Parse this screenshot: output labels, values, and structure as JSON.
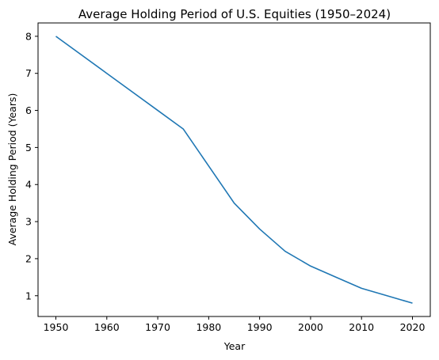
{
  "chart_data": {
    "type": "line",
    "title": "Average Holding Period of U.S. Equities (1950–2024)",
    "xlabel": "Year",
    "ylabel": "Average Holding Period (Years)",
    "x_ticks": [
      1950,
      1960,
      1970,
      1980,
      1990,
      2000,
      2010,
      2020
    ],
    "y_ticks": [
      1,
      2,
      3,
      4,
      5,
      6,
      7,
      8
    ],
    "xlim": [
      1946.5,
      2023.5
    ],
    "ylim": [
      0.44,
      8.36
    ],
    "grid": false,
    "line_color": "#1f77b4",
    "series": [
      {
        "x": [
          1950,
          1960,
          1970,
          1975,
          1980,
          1985,
          1990,
          1995,
          2000,
          2005,
          2010,
          2015,
          2020
        ],
        "y": [
          8.0,
          7.0,
          6.0,
          5.5,
          4.5,
          3.5,
          2.8,
          2.2,
          1.8,
          1.5,
          1.2,
          1.0,
          0.8
        ]
      }
    ]
  }
}
